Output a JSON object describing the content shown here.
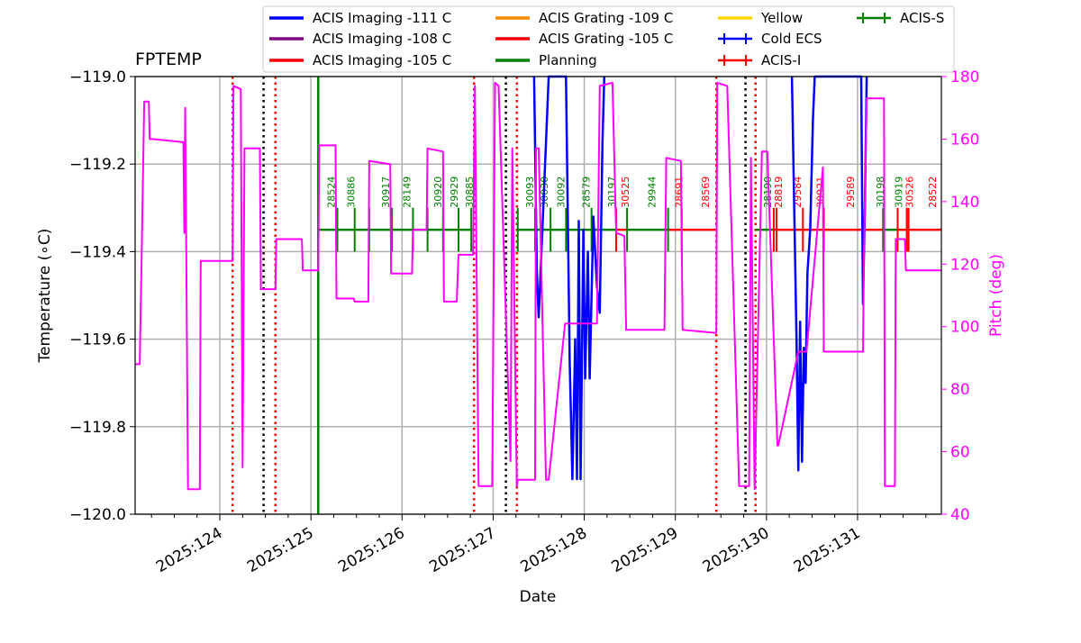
{
  "chart_data": {
    "type": "line",
    "title": "FPTEMP",
    "xlabel": "Date",
    "ylabel": "Temperature ($^\\circ$C)",
    "ylabel_display": "Temperature (∘C)",
    "y2label": "Pitch (deg)",
    "xlim": [
      123.07,
      131.92
    ],
    "ylim": [
      -120.0,
      -119.0
    ],
    "y2lim": [
      40,
      180
    ],
    "grid": true,
    "legend_position": "top (above plot)",
    "x_ticks": [
      {
        "value": 124,
        "label": "2025:124"
      },
      {
        "value": 125,
        "label": "2025:125"
      },
      {
        "value": 126,
        "label": "2025:126"
      },
      {
        "value": 127,
        "label": "2025:127"
      },
      {
        "value": 128,
        "label": "2025:128"
      },
      {
        "value": 129,
        "label": "2025:129"
      },
      {
        "value": 130,
        "label": "2025:130"
      },
      {
        "value": 131,
        "label": "2025:131"
      }
    ],
    "y_ticks": [
      -120.0,
      -119.8,
      -119.6,
      -119.4,
      -119.2,
      -119.0
    ],
    "y2_ticks": [
      40,
      60,
      80,
      100,
      120,
      140,
      160,
      180
    ],
    "legend": [
      {
        "label": "ACIS Imaging -111 C",
        "color": "#0000ff",
        "marker": "line"
      },
      {
        "label": "ACIS Imaging -108 C",
        "color": "#800080",
        "marker": "line"
      },
      {
        "label": "ACIS Imaging -105 C",
        "color": "#ff0000",
        "marker": "line"
      },
      {
        "label": "ACIS Grating -109 C",
        "color": "#ff8c00",
        "marker": "line"
      },
      {
        "label": "ACIS Grating -105 C",
        "color": "#ff0000",
        "marker": "line"
      },
      {
        "label": "Planning",
        "color": "#008000",
        "marker": "line"
      },
      {
        "label": "Yellow",
        "color": "#ffd700",
        "marker": "line"
      },
      {
        "label": "Cold ECS",
        "color": "#0000ff",
        "marker": "errorbar"
      },
      {
        "label": "ACIS-I",
        "color": "#ff0000",
        "marker": "errorbar"
      },
      {
        "label": "ACIS-S",
        "color": "#008000",
        "marker": "errorbar"
      }
    ],
    "colors": {
      "pitch": "#ff00ff",
      "temperature": "#0000ff",
      "planning": "#008000",
      "acis_i": "#ff0000",
      "acis_s": "#008000",
      "comm": "#ff0000",
      "perigee": "#000000",
      "grid": "#b0b0b0"
    },
    "vertical_markers": {
      "dotted_red": [
        124.14,
        124.61,
        126.79,
        127.26,
        129.45,
        129.88
      ],
      "dotted_black": [
        124.48,
        127.14,
        129.77
      ],
      "solid_green": [
        125.08
      ]
    },
    "obsids": [
      {
        "id": "28524",
        "x": 125.22,
        "color": "#008000"
      },
      {
        "id": "30886",
        "x": 125.44,
        "color": "#008000"
      },
      {
        "id": "30917",
        "x": 125.82,
        "color": "#008000"
      },
      {
        "id": "28149",
        "x": 126.05,
        "color": "#008000"
      },
      {
        "id": "30920",
        "x": 126.39,
        "color": "#008000"
      },
      {
        "id": "29929",
        "x": 126.57,
        "color": "#008000"
      },
      {
        "id": "30885",
        "x": 126.74,
        "color": "#008000"
      },
      {
        "id": "30093",
        "x": 127.4,
        "color": "#008000"
      },
      {
        "id": "30030",
        "x": 127.56,
        "color": "#008000"
      },
      {
        "id": "30092",
        "x": 127.74,
        "color": "#008000"
      },
      {
        "id": "28579",
        "x": 128.02,
        "color": "#008000"
      },
      {
        "id": "30197",
        "x": 128.3,
        "color": "#008000"
      },
      {
        "id": "30525",
        "x": 128.45,
        "color": "#ff0000"
      },
      {
        "id": "29944",
        "x": 128.74,
        "color": "#008000"
      },
      {
        "id": "28691",
        "x": 129.04,
        "color": "#ff0000"
      },
      {
        "id": "28569",
        "x": 129.33,
        "color": "#ff0000"
      },
      {
        "id": "28190",
        "x": 130.01,
        "color": "#008000"
      },
      {
        "id": "28819",
        "x": 130.13,
        "color": "#ff0000"
      },
      {
        "id": "29584",
        "x": 130.34,
        "color": "#ff0000"
      },
      {
        "id": "30921",
        "x": 130.59,
        "color": "#ff0000"
      },
      {
        "id": "29589",
        "x": 130.92,
        "color": "#ff0000"
      },
      {
        "id": "30198",
        "x": 131.25,
        "color": "#008000"
      },
      {
        "id": "30919",
        "x": 131.45,
        "color": "#008000"
      },
      {
        "id": "30526",
        "x": 131.57,
        "color": "#ff0000"
      },
      {
        "id": "28522",
        "x": 131.82,
        "color": "#ff0000"
      }
    ],
    "obs_segments": [
      {
        "x": [
          125.08,
          126.78
        ],
        "instrument": "ACIS-S"
      },
      {
        "x": [
          127.27,
          128.35
        ],
        "instrument": "ACIS-S"
      },
      {
        "x": [
          128.35,
          128.47
        ],
        "instrument": "ACIS-I"
      },
      {
        "x": [
          128.47,
          128.92
        ],
        "instrument": "ACIS-S"
      },
      {
        "x": [
          128.92,
          129.45
        ],
        "instrument": "ACIS-I"
      },
      {
        "x": [
          129.88,
          130.08
        ],
        "instrument": "ACIS-S"
      },
      {
        "x": [
          130.08,
          131.28
        ],
        "instrument": "ACIS-I"
      },
      {
        "x": [
          131.28,
          131.44
        ],
        "instrument": "ACIS-S"
      },
      {
        "x": [
          131.44,
          131.92
        ],
        "instrument": "ACIS-I"
      }
    ],
    "obs_ticks": [
      {
        "x": 125.08,
        "instrument": "ACIS-S"
      },
      {
        "x": 125.29,
        "instrument": "ACIS-S"
      },
      {
        "x": 125.48,
        "instrument": "ACIS-S"
      },
      {
        "x": 125.64,
        "instrument": "ACIS-S"
      },
      {
        "x": 125.89,
        "instrument": "ACIS-S"
      },
      {
        "x": 126.12,
        "instrument": "ACIS-S"
      },
      {
        "x": 126.28,
        "instrument": "ACIS-S"
      },
      {
        "x": 126.45,
        "instrument": "ACIS-S"
      },
      {
        "x": 126.62,
        "instrument": "ACIS-S"
      },
      {
        "x": 126.76,
        "instrument": "ACIS-S"
      },
      {
        "x": 127.27,
        "instrument": "ACIS-S"
      },
      {
        "x": 127.46,
        "instrument": "ACIS-S"
      },
      {
        "x": 127.63,
        "instrument": "ACIS-S"
      },
      {
        "x": 127.8,
        "instrument": "ACIS-S"
      },
      {
        "x": 128.08,
        "instrument": "ACIS-S"
      },
      {
        "x": 128.35,
        "instrument": "ACIS-I"
      },
      {
        "x": 128.47,
        "instrument": "ACIS-S"
      },
      {
        "x": 128.92,
        "instrument": "ACIS-S"
      },
      {
        "x": 129.07,
        "instrument": "ACIS-I"
      },
      {
        "x": 130.08,
        "instrument": "ACIS-I"
      },
      {
        "x": 130.11,
        "instrument": "ACIS-I"
      },
      {
        "x": 130.4,
        "instrument": "ACIS-I"
      },
      {
        "x": 130.63,
        "instrument": "ACIS-I"
      },
      {
        "x": 131.28,
        "instrument": "ACIS-S"
      },
      {
        "x": 131.44,
        "instrument": "ACIS-I"
      },
      {
        "x": 131.54,
        "instrument": "ACIS-I"
      },
      {
        "x": 131.56,
        "instrument": "ACIS-I"
      }
    ],
    "series": [
      {
        "name": "Pitch (deg)",
        "axis": "right",
        "color": "#ff00ff",
        "x": [
          123.07,
          123.12,
          123.14,
          123.17,
          123.22,
          123.23,
          123.26,
          123.6,
          123.61,
          123.62,
          123.65,
          123.78,
          123.79,
          124.14,
          124.15,
          124.23,
          124.25,
          124.27,
          124.31,
          124.44,
          124.45,
          124.61,
          124.62,
          124.9,
          124.91,
          125.08,
          125.09,
          125.27,
          125.28,
          125.47,
          125.48,
          125.63,
          125.64,
          125.87,
          125.88,
          126.11,
          126.12,
          126.27,
          126.28,
          126.45,
          126.46,
          126.6,
          126.62,
          126.78,
          126.8,
          126.84,
          126.99,
          127.02,
          127.06,
          127.19,
          127.21,
          127.26,
          127.27,
          127.46,
          127.47,
          127.5,
          127.58,
          127.61,
          127.79,
          127.8,
          128.14,
          128.17,
          128.31,
          128.35,
          128.44,
          128.46,
          128.88,
          128.9,
          129.06,
          129.08,
          129.45,
          129.46,
          129.57,
          129.7,
          129.81,
          129.83,
          129.87,
          129.95,
          130.01,
          130.12,
          130.13,
          130.35,
          130.42,
          130.44,
          130.62,
          130.63,
          131.06,
          131.07,
          131.1,
          131.29,
          131.3,
          131.41,
          131.42,
          131.52,
          131.53,
          131.92
        ],
        "y": [
          88,
          88,
          120,
          172,
          172,
          160,
          160,
          159,
          130,
          170,
          48,
          48,
          121,
          121,
          177,
          176,
          55,
          157,
          157,
          157,
          112,
          112,
          128,
          128,
          118,
          118,
          158,
          158,
          109,
          109,
          108,
          108,
          153,
          152,
          117,
          117,
          131,
          131,
          157,
          156,
          108,
          108,
          123,
          123,
          177,
          49,
          49,
          178,
          177,
          57,
          157,
          49,
          51,
          51,
          157,
          157,
          51,
          51,
          101,
          101,
          101,
          177,
          178,
          130,
          129,
          99,
          99,
          154,
          153,
          99,
          98,
          178,
          177,
          49,
          49,
          154,
          48,
          156,
          156,
          62,
          62,
          92,
          92,
          92,
          151,
          92,
          92,
          122,
          173,
          173,
          49,
          49,
          128,
          128,
          118,
          118
        ]
      },
      {
        "name": "FPTEMP",
        "axis": "left",
        "color": "#0000ff",
        "x": [
          127.45,
          127.48,
          127.5,
          127.54,
          127.58,
          127.61,
          127.8,
          127.84,
          127.87,
          127.9,
          127.92,
          127.94,
          127.96,
          127.99,
          128.01,
          128.04,
          128.06,
          128.1,
          128.14,
          128.17,
          128.2,
          128.22,
          130.28,
          130.33,
          130.35,
          130.37,
          130.39,
          130.41,
          130.43,
          130.45,
          130.48,
          130.51,
          130.53,
          130.55,
          131.04,
          131.06,
          131.08,
          131.1
        ],
        "y": [
          -119.0,
          -119.45,
          -119.55,
          -119.35,
          -119.15,
          -119.0,
          -119.0,
          -119.65,
          -119.92,
          -119.6,
          -119.92,
          -119.33,
          -119.92,
          -119.35,
          -119.69,
          -119.4,
          -119.69,
          -119.32,
          -119.48,
          -119.54,
          -119.15,
          -119.0,
          -119.0,
          -119.6,
          -119.9,
          -119.56,
          -119.88,
          -119.62,
          -119.7,
          -119.45,
          -119.35,
          -119.1,
          -119.0,
          -119.0,
          -119.0,
          -119.52,
          -119.3,
          -119.0
        ]
      }
    ]
  }
}
